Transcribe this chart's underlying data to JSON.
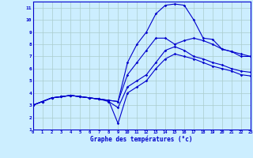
{
  "title": "Graphe des températures (°c)",
  "background_color": "#cceeff",
  "grid_color": "#aacccc",
  "line_color": "#0000cc",
  "xlim": [
    0,
    23
  ],
  "ylim": [
    1,
    11.5
  ],
  "xticks": [
    0,
    1,
    2,
    3,
    4,
    5,
    6,
    7,
    8,
    9,
    10,
    11,
    12,
    13,
    14,
    15,
    16,
    17,
    18,
    19,
    20,
    21,
    22,
    23
  ],
  "yticks": [
    1,
    2,
    3,
    4,
    5,
    6,
    7,
    8,
    9,
    10,
    11
  ],
  "series": [
    [
      3.0,
      3.3,
      3.6,
      3.7,
      3.8,
      3.7,
      3.6,
      3.5,
      3.4,
      3.3,
      6.5,
      8.0,
      9.0,
      10.5,
      11.2,
      11.3,
      11.2,
      10.0,
      8.5,
      8.4,
      7.6,
      7.4,
      7.0,
      7.0
    ],
    [
      3.0,
      3.3,
      3.6,
      3.7,
      3.8,
      3.7,
      3.6,
      3.5,
      3.4,
      3.3,
      5.5,
      6.5,
      7.5,
      8.5,
      8.5,
      8.0,
      8.3,
      8.5,
      8.3,
      8.0,
      7.6,
      7.4,
      7.2,
      7.0
    ],
    [
      3.0,
      3.3,
      3.6,
      3.7,
      3.8,
      3.7,
      3.6,
      3.5,
      3.3,
      2.8,
      4.5,
      5.0,
      5.5,
      6.5,
      7.5,
      7.8,
      7.5,
      7.0,
      6.8,
      6.5,
      6.3,
      6.0,
      5.8,
      5.7
    ],
    [
      3.0,
      3.3,
      3.6,
      3.7,
      3.8,
      3.7,
      3.6,
      3.5,
      3.4,
      1.5,
      4.0,
      4.5,
      5.0,
      6.0,
      6.8,
      7.2,
      7.0,
      6.8,
      6.5,
      6.2,
      6.0,
      5.8,
      5.5,
      5.4
    ]
  ]
}
